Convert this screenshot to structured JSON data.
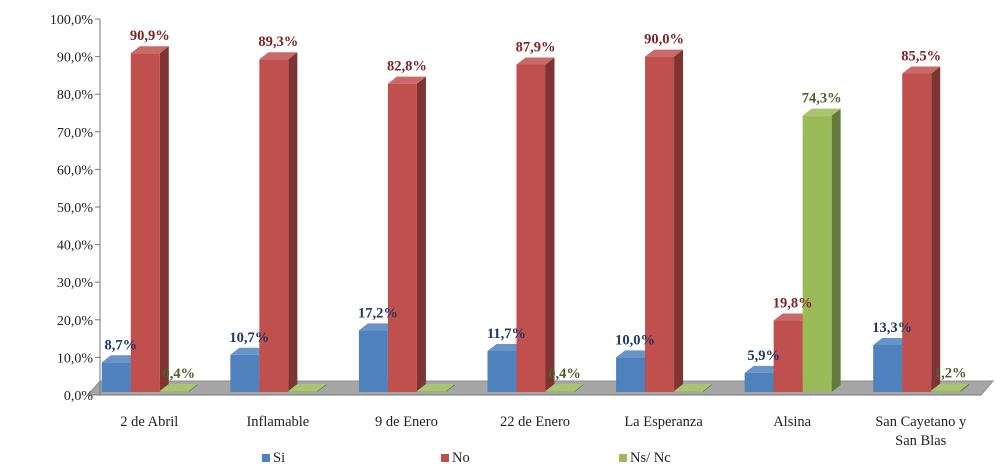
{
  "chart_data": {
    "type": "bar",
    "title": "",
    "xlabel": "",
    "ylabel": "",
    "ylim": [
      0,
      100
    ],
    "yticks": [
      "0,0%",
      "10,0%",
      "20,0%",
      "30,0%",
      "40,0%",
      "50,0%",
      "60,0%",
      "70,0%",
      "80,0%",
      "90,0%",
      "100,0%"
    ],
    "categories": [
      [
        "2 de Abril"
      ],
      [
        "Inflamable"
      ],
      [
        "9 de Enero"
      ],
      [
        "22 de Enero"
      ],
      [
        "La Esperanza"
      ],
      [
        "Alsina"
      ],
      [
        "San Cayetano y",
        "San Blas"
      ]
    ],
    "series": [
      {
        "name": "Si",
        "color": "#4f81bd",
        "values": [
          8.7,
          10.7,
          17.2,
          11.7,
          10.0,
          5.9,
          13.3
        ],
        "labels": [
          "8,7%",
          "10,7%",
          "17,2%",
          "11,7%",
          "10,0%",
          "5,9%",
          "13,3%"
        ],
        "label_color": "#1f3864"
      },
      {
        "name": "No",
        "color": "#c0504d",
        "values": [
          90.9,
          89.3,
          82.8,
          87.9,
          90.0,
          19.8,
          85.5
        ],
        "labels": [
          "90,9%",
          "89,3%",
          "82,8%",
          "87,9%",
          "90,0%",
          "19,8%",
          "85,5%"
        ],
        "label_color": "#7b2422"
      },
      {
        "name": "Ns/ Nc",
        "color": "#9bbb59",
        "values": [
          0.4,
          0,
          0,
          0.4,
          0,
          74.3,
          1.2
        ],
        "labels": [
          "0,4%",
          "",
          "",
          "0,4%",
          "",
          "74,3%",
          "1,2%"
        ],
        "label_color": "#4f6228"
      }
    ],
    "grid": false,
    "legend_position": "bottom"
  }
}
